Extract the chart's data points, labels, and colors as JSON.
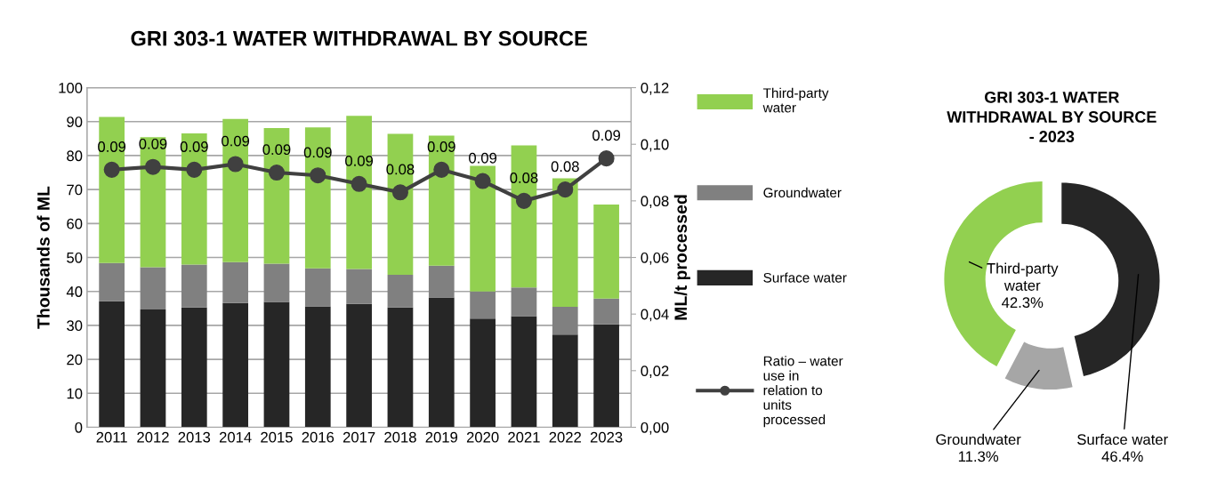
{
  "chart_data": [
    {
      "type": "bar",
      "title": "GRI 303-1 WATER WITHDRAWAL BY SOURCE",
      "ylabel": "Thousands of ML",
      "y2label": "ML/t processed",
      "categories": [
        "2011",
        "2012",
        "2013",
        "2014",
        "2015",
        "2016",
        "2017",
        "2018",
        "2019",
        "2020",
        "2021",
        "2022",
        "2023"
      ],
      "stacked": true,
      "series": [
        {
          "name": "Surface water",
          "color": "#262626",
          "values": [
            37.1,
            34.7,
            35.3,
            36.6,
            36.9,
            35.6,
            36.3,
            35.3,
            38.2,
            32.0,
            32.7,
            27.3,
            30.3
          ]
        },
        {
          "name": "Groundwater",
          "color": "#808080",
          "values": [
            11.3,
            12.4,
            12.6,
            12.0,
            11.3,
            11.2,
            10.3,
            9.6,
            9.4,
            8.0,
            8.5,
            8.2,
            7.6
          ]
        },
        {
          "name": "Third-party water",
          "color": "#92d050",
          "values": [
            43.0,
            38.3,
            38.6,
            42.2,
            39.9,
            41.5,
            45.1,
            41.5,
            38.3,
            37.0,
            41.8,
            37.8,
            27.7
          ]
        },
        {
          "name": "Ratio – water use in relation to units processed",
          "type": "line",
          "axis": "y2",
          "color": "#404040",
          "marker": "circle",
          "values": [
            0.091,
            0.092,
            0.091,
            0.093,
            0.09,
            0.089,
            0.086,
            0.083,
            0.091,
            0.087,
            0.08,
            0.084,
            0.095
          ],
          "value_labels": [
            "0.09",
            "0.09",
            "0.09",
            "0.09",
            "0.09",
            "0.09",
            "0.09",
            "0.08",
            "0.09",
            "0.09",
            "0.08",
            "0.08",
            "0.09"
          ]
        }
      ],
      "ylim": [
        0,
        100
      ],
      "yticks": [
        0,
        10,
        20,
        30,
        40,
        50,
        60,
        70,
        80,
        90,
        100
      ],
      "y2lim": [
        0,
        0.12
      ],
      "y2ticks": [
        {
          "value": 0,
          "label": "0,00"
        },
        {
          "value": 0.02,
          "label": "0,02"
        },
        {
          "value": 0.04,
          "label": "0,04"
        },
        {
          "value": 0.06,
          "label": "0,06"
        },
        {
          "value": 0.08,
          "label": "0,08"
        },
        {
          "value": 0.1,
          "label": "0,10"
        },
        {
          "value": 0.12,
          "label": "0,12"
        }
      ],
      "grid": "y",
      "legend": "right"
    },
    {
      "type": "donut",
      "title": "GRI 303-1 WATER WITHDRAWAL BY SOURCE - 2023",
      "categories": [
        "Surface water",
        "Groundwater",
        "Third-party water"
      ],
      "values": [
        46.4,
        11.3,
        42.3
      ],
      "colors": [
        "#262626",
        "#a6a6a6",
        "#92d050"
      ],
      "value_labels": [
        "46.4%",
        "11.3%",
        "42.3%"
      ]
    }
  ]
}
